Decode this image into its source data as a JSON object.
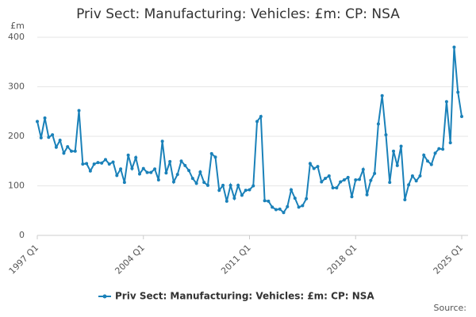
{
  "chart_data": {
    "type": "line",
    "title": "Priv Sect: Manufacturing: Vehicles: £m: CP: NSA",
    "y_label": "£m",
    "source": "Source:",
    "categories": [
      "1997 Q1",
      null,
      null,
      null,
      null,
      null,
      null,
      null,
      null,
      null,
      null,
      null,
      null,
      null,
      null,
      null,
      null,
      null,
      null,
      null,
      null,
      null,
      null,
      null,
      null,
      null,
      null,
      null,
      "2004 Q1",
      null,
      null,
      null,
      null,
      null,
      null,
      null,
      null,
      null,
      null,
      null,
      null,
      null,
      null,
      null,
      null,
      null,
      null,
      null,
      null,
      null,
      null,
      null,
      null,
      null,
      null,
      null,
      "2011 Q1",
      null,
      null,
      null,
      null,
      null,
      null,
      null,
      null,
      null,
      null,
      null,
      null,
      null,
      null,
      null,
      null,
      null,
      null,
      null,
      null,
      null,
      null,
      null,
      null,
      null,
      null,
      null,
      "2018 Q1",
      null,
      null,
      null,
      null,
      null,
      null,
      null,
      null,
      null,
      null,
      null,
      null,
      null,
      null,
      null,
      null,
      null,
      null,
      null,
      null,
      null,
      null,
      null,
      null,
      null,
      null,
      null,
      "2025 Q1"
    ],
    "series": [
      {
        "name": "Priv Sect: Manufacturing: Vehicles: £m: CP: NSA",
        "color": "#1a81b9",
        "values": [
          230,
          197,
          237,
          198,
          203,
          178,
          192,
          166,
          179,
          170,
          170,
          252,
          144,
          145,
          130,
          144,
          147,
          146,
          153,
          144,
          148,
          121,
          134,
          107,
          162,
          135,
          157,
          124,
          135,
          127,
          127,
          134,
          112,
          190,
          126,
          149,
          108,
          123,
          150,
          141,
          131,
          115,
          105,
          128,
          107,
          101,
          165,
          158,
          91,
          101,
          69,
          101,
          75,
          101,
          81,
          91,
          92,
          100,
          230,
          240,
          70,
          69,
          57,
          52,
          53,
          46,
          58,
          92,
          75,
          57,
          60,
          74,
          145,
          135,
          139,
          108,
          115,
          120,
          96,
          96,
          108,
          112,
          117,
          78,
          112,
          113,
          133,
          82,
          111,
          125,
          225,
          282,
          203,
          107,
          170,
          141,
          180,
          72,
          102,
          120,
          110,
          120,
          162,
          150,
          143,
          166,
          175,
          174,
          270,
          187,
          380,
          289,
          240
        ]
      }
    ],
    "ylim": [
      0,
      400
    ],
    "yticks": [
      0,
      100,
      200,
      300,
      400
    ],
    "grid": true
  }
}
